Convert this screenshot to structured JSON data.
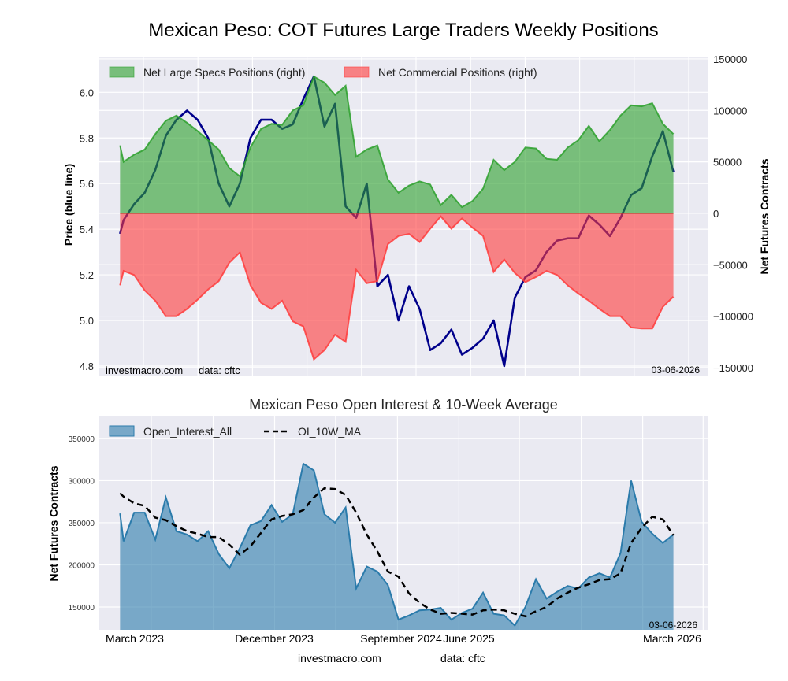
{
  "chart_data": [
    {
      "type": "area",
      "title": "Mexican Peso: COT Futures Large Traders Weekly Positions",
      "ylabel_left": "Price (blue line)",
      "ylabel_right": "Net Futures Contracts",
      "ylim_left": [
        4.755,
        6.153
      ],
      "ylim_right": [
        -158500,
        151500
      ],
      "left_ticks": [
        "4.8",
        "5.0",
        "5.2",
        "5.4",
        "5.6",
        "5.8",
        "6.0"
      ],
      "right_ticks": [
        "-150000",
        "-100000",
        "-50000",
        "0",
        "50000",
        "100000",
        "150000"
      ],
      "grid": true,
      "legend_placement": "top-left",
      "watermark": "investmacro.com",
      "source": "data: cftc",
      "date_label": "03-06-2026",
      "colors": {
        "specs": "#2ca02c",
        "commercial": "#ff3b3b",
        "price": "#00008b"
      },
      "dates": [
        "2023-02-28",
        "2023-03-07",
        "2023-03-28",
        "2023-04-18",
        "2023-05-09",
        "2023-05-30",
        "2023-06-20",
        "2023-07-11",
        "2023-08-01",
        "2023-08-22",
        "2023-09-12",
        "2023-10-03",
        "2023-10-24",
        "2023-11-14",
        "2023-12-05",
        "2023-12-26",
        "2024-01-16",
        "2024-02-06",
        "2024-02-27",
        "2024-03-19",
        "2024-04-09",
        "2024-04-30",
        "2024-05-21",
        "2024-06-11",
        "2024-07-02",
        "2024-07-23",
        "2024-08-13",
        "2024-09-03",
        "2024-09-24",
        "2024-10-15",
        "2024-11-05",
        "2024-11-26",
        "2024-12-17",
        "2025-01-07",
        "2025-01-28",
        "2025-02-18",
        "2025-03-11",
        "2025-04-01",
        "2025-04-22",
        "2025-05-13",
        "2025-06-03",
        "2025-06-24",
        "2025-07-15",
        "2025-08-05",
        "2025-08-26",
        "2025-09-16",
        "2025-10-07",
        "2025-10-28",
        "2025-11-18",
        "2025-12-09",
        "2025-12-30",
        "2026-01-20",
        "2026-02-10",
        "2026-03-03"
      ],
      "series": [
        {
          "name": "Net Large Specs Positions (right)",
          "axis": "right",
          "values": [
            66000,
            50000,
            57000,
            62000,
            77000,
            90000,
            95000,
            88000,
            80000,
            71000,
            62000,
            44000,
            36000,
            64000,
            82000,
            87000,
            86000,
            100000,
            105000,
            133000,
            127000,
            115000,
            124000,
            55000,
            62000,
            66000,
            33000,
            20000,
            27000,
            31000,
            28000,
            8000,
            18000,
            6000,
            12000,
            24000,
            52000,
            42000,
            50000,
            64000,
            63000,
            53000,
            52000,
            64000,
            71000,
            85000,
            70000,
            81000,
            95000,
            105000,
            104000,
            107000,
            87000,
            77000
          ]
        },
        {
          "name": "Net Commercial Positions (right)",
          "axis": "right",
          "values": [
            -70000,
            -56000,
            -60000,
            -75000,
            -85000,
            -100000,
            -100000,
            -93000,
            -84000,
            -74000,
            -66000,
            -48000,
            -38000,
            -70000,
            -87000,
            -93000,
            -85000,
            -105000,
            -110000,
            -142000,
            -133000,
            -118000,
            -125000,
            -55000,
            -68000,
            -66000,
            -30000,
            -22000,
            -20000,
            -28000,
            -15000,
            -3000,
            -15000,
            -5000,
            -14000,
            -22000,
            -57000,
            -45000,
            -58000,
            -67000,
            -62000,
            -56000,
            -60000,
            -70000,
            -78000,
            -85000,
            -93000,
            -100000,
            -100000,
            -111000,
            -112000,
            -112000,
            -91000,
            -81000
          ]
        },
        {
          "axis": "left",
          "values": [
            5.38,
            5.44,
            5.51,
            5.56,
            5.66,
            5.81,
            5.88,
            5.92,
            5.88,
            5.8,
            5.6,
            5.5,
            5.6,
            5.8,
            5.88,
            5.88,
            5.84,
            5.86,
            5.97,
            6.07,
            5.85,
            5.95,
            5.5,
            5.45,
            5.6,
            5.15,
            5.2,
            5.0,
            5.15,
            5.05,
            4.87,
            4.9,
            4.96,
            4.85,
            4.88,
            4.92,
            5.0,
            4.8,
            5.1,
            5.19,
            5.22,
            5.3,
            5.35,
            5.36,
            5.36,
            5.46,
            5.42,
            5.37,
            5.45,
            5.55,
            5.58,
            5.72,
            5.83,
            5.65
          ]
        }
      ]
    },
    {
      "type": "area",
      "title": "Mexican Peso Open Interest & 10-Week Average",
      "ylabel": "Net Futures Contracts",
      "ylim": [
        122900,
        377000
      ],
      "y_ticks": [
        "150000",
        "200000",
        "250000",
        "300000",
        "350000"
      ],
      "x_tick_labels": [
        "March 2023",
        "December 2023",
        "September 2024",
        "June 2025",
        "March 2026"
      ],
      "grid": true,
      "legend_placement": "top-left",
      "date_label": "03-06-2026",
      "footer": {
        "site": "investmacro.com",
        "source": "data: cftc"
      },
      "colors": {
        "oi": "#2b7bab",
        "ma": "#000000"
      },
      "series": [
        {
          "name": "Open_Interest_All",
          "values": [
            261000,
            228000,
            262000,
            262000,
            230000,
            280000,
            240000,
            236000,
            228000,
            240000,
            213000,
            196000,
            220000,
            247000,
            252000,
            271000,
            251000,
            260000,
            320000,
            312000,
            260000,
            250000,
            268000,
            172000,
            198000,
            192000,
            176000,
            135000,
            140000,
            146000,
            147000,
            149000,
            135000,
            143000,
            148000,
            167000,
            142000,
            140000,
            128000,
            150000,
            183000,
            160000,
            168000,
            175000,
            172000,
            185000,
            190000,
            185000,
            214000,
            300000,
            251000,
            237000,
            226000,
            236000
          ]
        },
        {
          "name": "OI_10W_MA",
          "values": [
            285000,
            281000,
            273000,
            270000,
            256000,
            253000,
            246000,
            240000,
            237000,
            233000,
            233000,
            224000,
            212000,
            222000,
            238000,
            254000,
            258000,
            260000,
            265000,
            280000,
            291000,
            290000,
            283000,
            262000,
            236000,
            216000,
            192000,
            186000,
            166000,
            155000,
            147000,
            142000,
            143000,
            142000,
            141000,
            146000,
            147000,
            146000,
            142000,
            139000,
            145000,
            150000,
            160000,
            167000,
            173000,
            177000,
            182000,
            183000,
            190000,
            226000,
            244000,
            257000,
            254000,
            235000
          ]
        }
      ]
    }
  ]
}
